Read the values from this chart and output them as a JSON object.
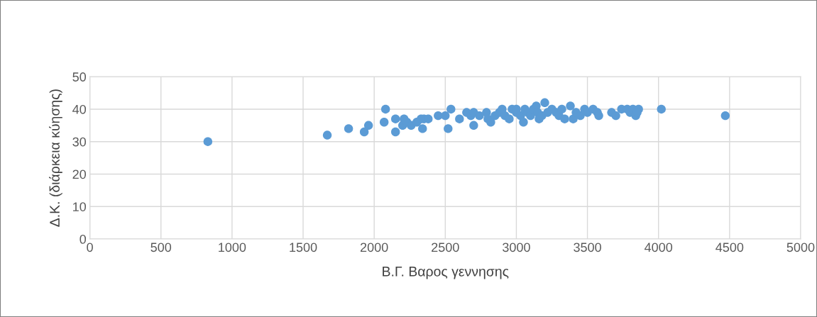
{
  "chart_data": {
    "type": "scatter",
    "xlabel": "Β.Γ. Βαρος γεννησης",
    "ylabel": "Δ.Κ. (διάρκεια κύησης)",
    "xlim": [
      0,
      5000
    ],
    "xticks": [
      0,
      500,
      1000,
      1500,
      2000,
      2500,
      3000,
      3500,
      4000,
      4500,
      5000
    ],
    "ylim": [
      0,
      50
    ],
    "yticks": [
      0,
      10,
      20,
      30,
      40,
      50
    ],
    "grid": true,
    "marker": "circle",
    "series": [
      {
        "color": "#5b9bd5",
        "x": [
          830,
          1670,
          1820,
          1930,
          1960,
          2070,
          2080,
          2150,
          2150,
          2200,
          2210,
          2230,
          2260,
          2300,
          2330,
          2340,
          2350,
          2380,
          2450,
          2500,
          2520,
          2540,
          2600,
          2650,
          2680,
          2700,
          2700,
          2740,
          2790,
          2800,
          2820,
          2850,
          2880,
          2900,
          2920,
          2950,
          2970,
          3000,
          3000,
          3030,
          3050,
          3060,
          3080,
          3100,
          3120,
          3140,
          3150,
          3160,
          3180,
          3200,
          3220,
          3250,
          3280,
          3300,
          3320,
          3340,
          3380,
          3400,
          3420,
          3450,
          3480,
          3500,
          3540,
          3570,
          3580,
          3670,
          3700,
          3740,
          3780,
          3800,
          3820,
          3840,
          3860,
          3850,
          4020,
          4470
        ],
        "values": [
          30,
          32,
          34,
          33,
          35,
          36,
          40,
          37,
          33,
          35,
          37,
          36,
          35,
          36,
          37,
          34,
          37,
          37,
          38,
          38,
          34,
          40,
          37,
          39,
          38,
          35,
          39,
          38,
          39,
          37,
          36,
          38,
          39,
          40,
          38,
          37,
          40,
          39,
          40,
          38,
          36,
          40,
          39,
          38,
          40,
          41,
          39,
          37,
          38,
          42,
          39,
          40,
          39,
          38,
          40,
          37,
          41,
          37,
          39,
          38,
          40,
          39,
          40,
          39,
          38,
          39,
          38,
          40,
          40,
          39,
          40,
          38,
          40,
          39,
          40,
          38
        ]
      }
    ]
  }
}
